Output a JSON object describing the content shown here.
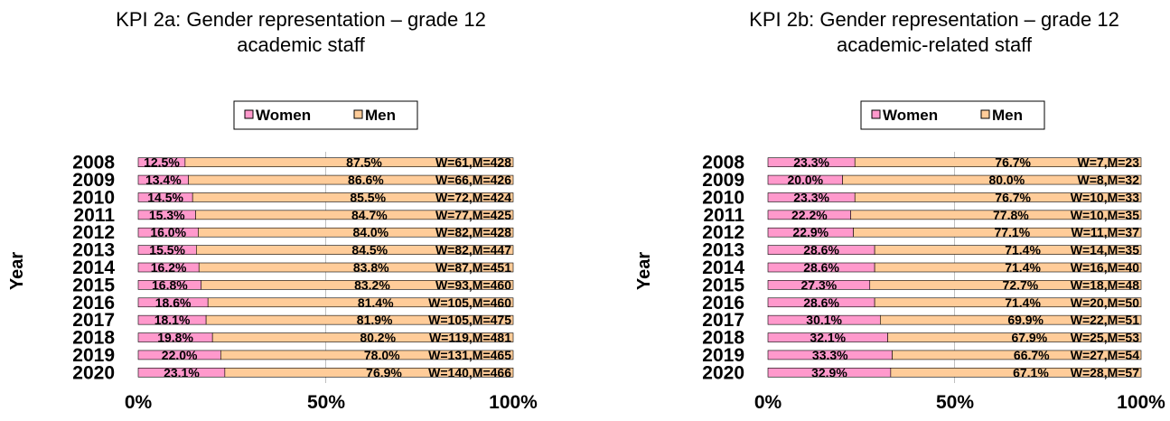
{
  "legend": {
    "women": "Women",
    "men": "Men"
  },
  "colors": {
    "women": "#ff99cc",
    "men": "#ffcc99",
    "bar_border": "#000000",
    "gridline": "#c0c0c0"
  },
  "chart_data": [
    {
      "type": "bar",
      "orientation": "horizontal",
      "stacked": "percent",
      "title_lines": [
        "KPI 2a: Gender representation – grade 12",
        "academic staff"
      ],
      "ylabel": "Year",
      "xlabel": "",
      "xlim": [
        0,
        100
      ],
      "x_ticks": [
        "0%",
        "50%",
        "100%"
      ],
      "legend_position": "top",
      "categories": [
        "2008",
        "2009",
        "2010",
        "2011",
        "2012",
        "2013",
        "2014",
        "2015",
        "2016",
        "2017",
        "2018",
        "2019",
        "2020"
      ],
      "series": [
        {
          "name": "Women",
          "values": [
            12.5,
            13.4,
            14.5,
            15.3,
            16.0,
            15.5,
            16.2,
            16.8,
            18.6,
            18.1,
            19.8,
            22.0,
            23.1
          ],
          "labels": [
            "12.5%",
            "13.4%",
            "14.5%",
            "15.3%",
            "16.0%",
            "15.5%",
            "16.2%",
            "16.8%",
            "18.6%",
            "18.1%",
            "19.8%",
            "22.0%",
            "23.1%"
          ]
        },
        {
          "name": "Men",
          "values": [
            87.5,
            86.6,
            85.5,
            84.7,
            84.0,
            84.5,
            83.8,
            83.2,
            81.4,
            81.9,
            80.2,
            78.0,
            76.9
          ],
          "labels": [
            "87.5%",
            "86.6%",
            "85.5%",
            "84.7%",
            "84.0%",
            "84.5%",
            "83.8%",
            "83.2%",
            "81.4%",
            "81.9%",
            "80.2%",
            "78.0%",
            "76.9%"
          ]
        }
      ],
      "counts": [
        "W=61,M=428",
        "W=66,M=426",
        "W=72,M=424",
        "W=77,M=425",
        "W=82,M=428",
        "W=82,M=447",
        "W=87,M=451",
        "W=93,M=460",
        "W=105,M=460",
        "W=105,M=475",
        "W=119,M=481",
        "W=131,M=465",
        "W=140,M=466"
      ]
    },
    {
      "type": "bar",
      "orientation": "horizontal",
      "stacked": "percent",
      "title_lines": [
        "KPI 2b: Gender representation – grade 12",
        "academic-related staff"
      ],
      "ylabel": "Year",
      "xlabel": "",
      "xlim": [
        0,
        100
      ],
      "x_ticks": [
        "0%",
        "50%",
        "100%"
      ],
      "legend_position": "top",
      "categories": [
        "2008",
        "2009",
        "2010",
        "2011",
        "2012",
        "2013",
        "2014",
        "2015",
        "2016",
        "2017",
        "2018",
        "2019",
        "2020"
      ],
      "series": [
        {
          "name": "Women",
          "values": [
            23.3,
            20.0,
            23.3,
            22.2,
            22.9,
            28.6,
            28.6,
            27.3,
            28.6,
            30.1,
            32.1,
            33.3,
            32.9
          ],
          "labels": [
            "23.3%",
            "20.0%",
            "23.3%",
            "22.2%",
            "22.9%",
            "28.6%",
            "28.6%",
            "27.3%",
            "28.6%",
            "30.1%",
            "32.1%",
            "33.3%",
            "32.9%"
          ]
        },
        {
          "name": "Men",
          "values": [
            76.7,
            80.0,
            76.7,
            77.8,
            77.1,
            71.4,
            71.4,
            72.7,
            71.4,
            69.9,
            67.9,
            66.7,
            67.1
          ],
          "labels": [
            "76.7%",
            "80.0%",
            "76.7%",
            "77.8%",
            "77.1%",
            "71.4%",
            "71.4%",
            "72.7%",
            "71.4%",
            "69.9%",
            "67.9%",
            "66.7%",
            "67.1%"
          ]
        }
      ],
      "counts": [
        "W=7,M=23",
        "W=8,M=32",
        "W=10,M=33",
        "W=10,M=35",
        "W=11,M=37",
        "W=14,M=35",
        "W=16,M=40",
        "W=18,M=48",
        "W=20,M=50",
        "W=22,M=51",
        "W=25,M=53",
        "W=27,M=54",
        "W=28,M=57"
      ]
    }
  ]
}
